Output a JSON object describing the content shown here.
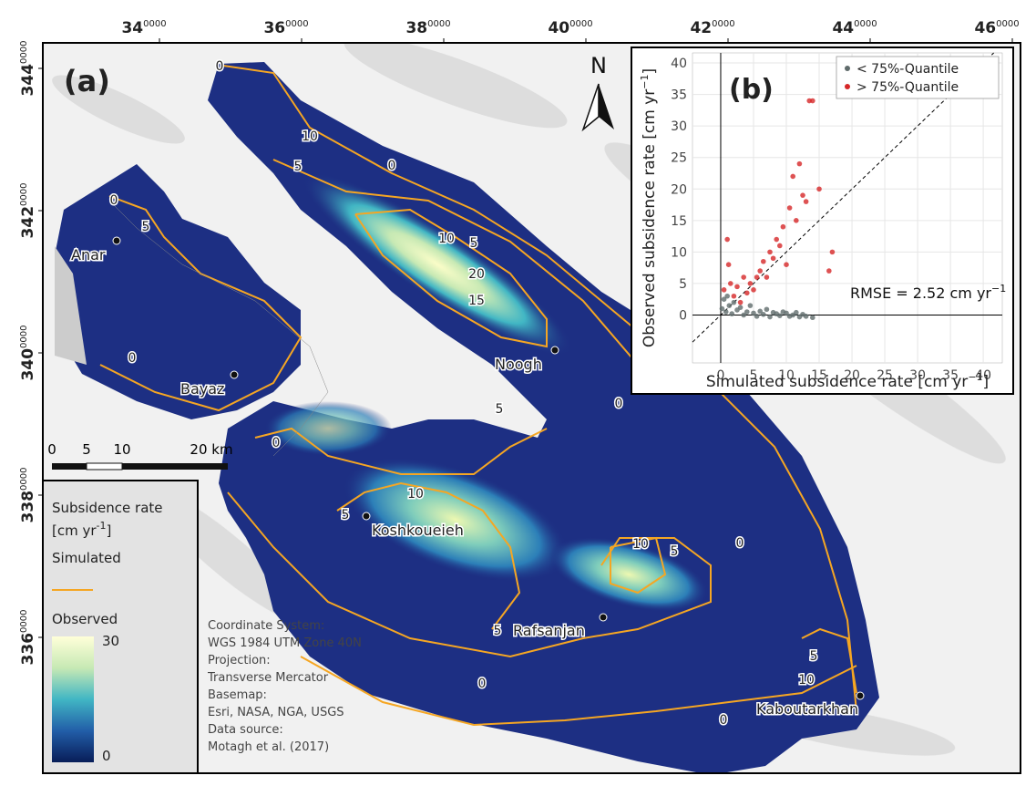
{
  "map": {
    "panel_label": "(a)",
    "north": "N",
    "x_ticks": [
      {
        "main": "34",
        "sup": "0000"
      },
      {
        "main": "36",
        "sup": "0000"
      },
      {
        "main": "38",
        "sup": "0000"
      },
      {
        "main": "40",
        "sup": "0000"
      },
      {
        "main": "42",
        "sup": "0000"
      },
      {
        "main": "44",
        "sup": "0000"
      },
      {
        "main": "46",
        "sup": "0000"
      }
    ],
    "y_ticks": [
      {
        "main": "344",
        "sup": "0000"
      },
      {
        "main": "342",
        "sup": "0000"
      },
      {
        "main": "340",
        "sup": "0000"
      },
      {
        "main": "338",
        "sup": "0000"
      },
      {
        "main": "336",
        "sup": "0000"
      }
    ],
    "places": [
      "Anar",
      "Bayaz",
      "Noogh",
      "Koshkoueieh",
      "Rafsanjan",
      "Kaboutarkhan"
    ],
    "contour_labels": [
      0,
      10,
      5,
      0,
      0,
      5,
      10,
      5,
      20,
      15,
      0,
      5,
      0,
      0,
      10,
      5,
      0,
      10,
      5,
      5,
      0,
      5,
      10,
      0
    ],
    "scale_bar": [
      "0",
      "5",
      "10",
      "20 km"
    ],
    "legend": {
      "title": "Subsidence rate",
      "unit": "[cm yr",
      "unit_sup": "-1",
      "unit_end": "]",
      "simulated": "Simulated",
      "observed": "Observed",
      "max": "30",
      "min": "0"
    },
    "notes": [
      "Coordinate System:",
      "WGS 1984 UTM Zone 40N",
      "Projection:",
      "Transverse Mercator",
      "Basemap:",
      "Esri, NASA, NGA, USGS",
      "Data source:",
      "Motagh et al. (2017)"
    ]
  },
  "chart_data": {
    "type": "scatter",
    "panel_label": "(b)",
    "xlabel": {
      "text": "Simulated subsidence rate [cm yr",
      "sup": "−1",
      "end": "]"
    },
    "ylabel": {
      "text": "Observed subsidence rate [cm yr",
      "sup": "−1",
      "end": "]"
    },
    "annotation": {
      "text": "RMSE = 2.52 cm yr",
      "sup": "−1"
    },
    "xlim": [
      -4.3,
      42.9
    ],
    "ylim": [
      -7.6,
      41.6
    ],
    "xticks": [
      0,
      5,
      10,
      15,
      20,
      25,
      30,
      35,
      40
    ],
    "yticks": [
      0,
      5,
      10,
      15,
      20,
      25,
      30,
      35,
      40
    ],
    "grid": true,
    "legend": "top-right",
    "series": [
      {
        "name": "< 75%-Quantile",
        "color": "#5f6b6b",
        "x": [
          0.2,
          0.5,
          0.8,
          1,
          1.3,
          1.7,
          2,
          2.5,
          3,
          3.5,
          4,
          4.5,
          5,
          5.5,
          6,
          6.5,
          7,
          7.5,
          8,
          8.5,
          9,
          9.5,
          10,
          10.5,
          11,
          11.5,
          12,
          12.5,
          13,
          14
        ],
        "values": [
          1,
          2.5,
          0.5,
          3,
          1.5,
          0.2,
          2,
          0.8,
          1.2,
          0,
          0.5,
          1.5,
          0.3,
          -0.2,
          0.6,
          0.1,
          0.9,
          -0.3,
          0.4,
          0.2,
          -0.1,
          0.5,
          0.3,
          -0.2,
          0,
          0.4,
          -0.3,
          0.1,
          -0.2,
          -0.4
        ]
      },
      {
        "name": "> 75%-Quantile",
        "color": "#d62728",
        "x": [
          0.5,
          1,
          1.2,
          1.5,
          2,
          2.5,
          3,
          3.5,
          4,
          4.5,
          5,
          5.5,
          6,
          6.5,
          7,
          7.5,
          8,
          8.5,
          9,
          9.5,
          10,
          10.5,
          11,
          11.5,
          12,
          12.5,
          13,
          13.5,
          14,
          15,
          16.5,
          17
        ],
        "values": [
          4,
          12,
          8,
          5,
          3,
          4.5,
          2,
          6,
          3.5,
          5,
          4,
          6,
          7,
          8.5,
          6,
          10,
          9,
          12,
          11,
          14,
          8,
          17,
          22,
          15,
          24,
          19,
          18,
          34,
          34,
          20,
          7,
          10
        ]
      }
    ]
  }
}
